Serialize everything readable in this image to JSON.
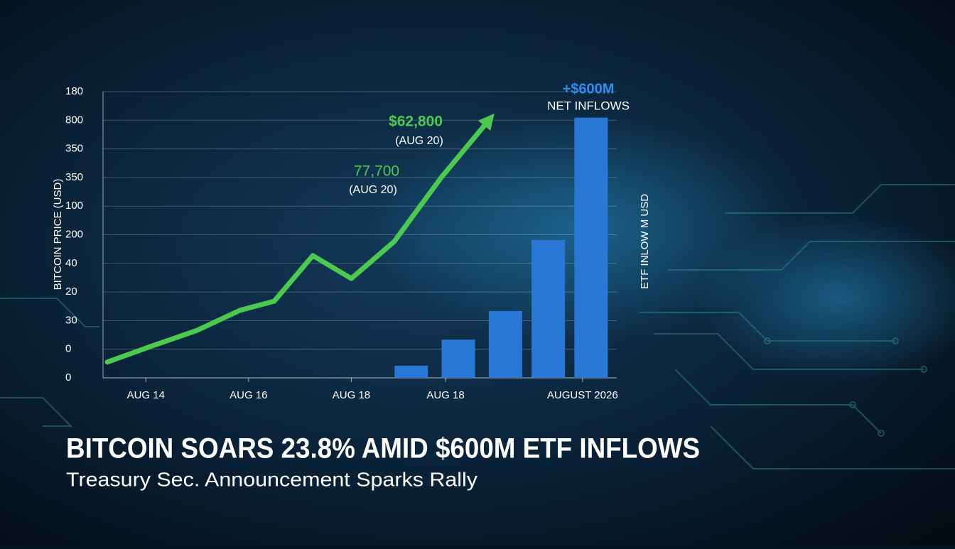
{
  "chart_data": {
    "type": "line_bar",
    "title": "BITCOIN SOARS 23.8% AMID $600M ETF INFLOWS",
    "subtitle": "Treasury Sec. Announcement Sparks Rally",
    "y_label": "BITCOIN PRICE (USD)",
    "y2_label": "ETF INLOW M USD",
    "xlim": [
      0,
      12
    ],
    "xticks": [
      {
        "value": 1,
        "label": "AUG 14"
      },
      {
        "value": 3.4,
        "label": "AUG 16"
      },
      {
        "value": 5.8,
        "label": "AUG 18"
      },
      {
        "value": 8,
        "label": "AUG 18"
      },
      {
        "value": 11.2,
        "label": "AUGUST 2026"
      }
    ],
    "ylim": [
      0,
      10
    ],
    "yticks": [
      {
        "value": 0,
        "label": "0"
      },
      {
        "value": 1,
        "label": "0"
      },
      {
        "value": 2,
        "label": "30"
      },
      {
        "value": 3,
        "label": "20"
      },
      {
        "value": 4,
        "label": "40"
      },
      {
        "value": 5,
        "label": "200"
      },
      {
        "value": 6,
        "label": "100"
      },
      {
        "value": 7,
        "label": "350"
      },
      {
        "value": 8,
        "label": "350"
      },
      {
        "value": 9,
        "label": "800"
      },
      {
        "value": 10,
        "label": "180"
      }
    ],
    "y2lim": [
      0,
      660
    ],
    "grid": true,
    "series": [
      {
        "type": "line",
        "color": "#4cc94f",
        "x": [
          0.1,
          1.1,
          2.2,
          3.2,
          4.0,
          4.9,
          5.8,
          6.8,
          7.9,
          9.0
        ],
        "values": [
          0.55,
          1.09,
          1.66,
          2.36,
          2.68,
          4.27,
          3.47,
          4.76,
          7.0,
          8.98
        ]
      },
      {
        "type": "bar",
        "axis": "y2",
        "color": "#2a78d6",
        "x": [
          7.2,
          8.3,
          9.4,
          10.4,
          11.4
        ],
        "values": [
          28,
          88,
          154,
          318,
          600
        ]
      }
    ],
    "annotations": [
      {
        "text": "$62,800",
        "sub": "(AUG 20)"
      },
      {
        "text": "77,700",
        "sub": "(AUG 20)"
      },
      {
        "text": "+$600M",
        "sub": "NET INFLOWS"
      }
    ]
  }
}
